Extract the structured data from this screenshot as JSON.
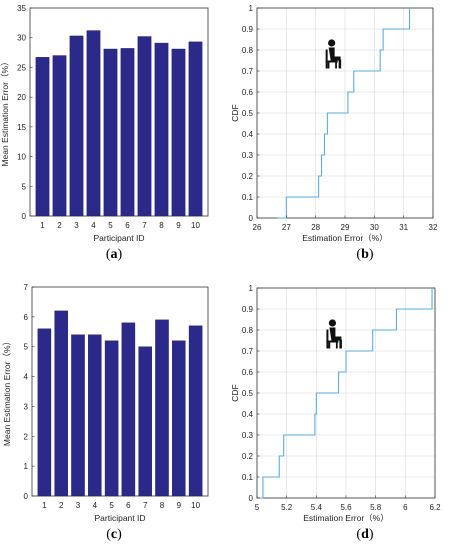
{
  "chart_data": [
    {
      "id": "a",
      "type": "bar",
      "caption": "a",
      "categories": [
        "1",
        "2",
        "3",
        "4",
        "5",
        "6",
        "7",
        "8",
        "9",
        "10"
      ],
      "values": [
        26.7,
        27.0,
        30.3,
        31.2,
        28.1,
        28.2,
        30.2,
        29.1,
        28.1,
        29.3
      ],
      "xlabel": "Participant ID",
      "ylabel": "Mean Estimation Error（%）",
      "ylim": [
        0,
        35
      ],
      "yticks": [
        "0",
        "5",
        "10",
        "15",
        "20",
        "25",
        "30",
        "35"
      ],
      "grid": false,
      "bar_color": "#2b2a8a"
    },
    {
      "id": "b",
      "type": "line",
      "caption": "b",
      "icon": "seated-person-icon",
      "x": [
        26.7,
        27.0,
        28.1,
        28.2,
        28.3,
        28.4,
        29.1,
        29.3,
        30.2,
        30.3,
        31.2
      ],
      "y": [
        0.0,
        0.1,
        0.2,
        0.3,
        0.4,
        0.5,
        0.6,
        0.7,
        0.8,
        0.9,
        1.0
      ],
      "step": true,
      "xlabel": "Estimation Error（%）",
      "ylabel": "CDF",
      "xlim": [
        26,
        32
      ],
      "ylim": [
        0,
        1
      ],
      "xticks": [
        "26",
        "27",
        "28",
        "29",
        "30",
        "31",
        "32"
      ],
      "yticks": [
        "0",
        "0.1",
        "0.2",
        "0.3",
        "0.4",
        "0.5",
        "0.6",
        "0.7",
        "0.8",
        "0.9",
        "1"
      ],
      "grid": true,
      "line_color": "#5aaee0"
    },
    {
      "id": "c",
      "type": "bar",
      "caption": "c",
      "categories": [
        "1",
        "2",
        "3",
        "4",
        "5",
        "6",
        "7",
        "8",
        "9",
        "10"
      ],
      "values": [
        5.6,
        6.2,
        5.4,
        5.4,
        5.2,
        5.8,
        5.0,
        5.9,
        5.2,
        5.7
      ],
      "xlabel": "Participant ID",
      "ylabel": "Mean Estimation Error（%）",
      "ylim": [
        0,
        7
      ],
      "yticks": [
        "0",
        "1",
        "2",
        "3",
        "4",
        "5",
        "6",
        "7"
      ],
      "grid": false,
      "bar_color": "#2b2a8a"
    },
    {
      "id": "d",
      "type": "line",
      "caption": "d",
      "icon": "seated-person-icon",
      "x": [
        5.02,
        5.04,
        5.15,
        5.18,
        5.39,
        5.4,
        5.55,
        5.6,
        5.78,
        5.94,
        6.18
      ],
      "y": [
        0.0,
        0.1,
        0.2,
        0.3,
        0.4,
        0.5,
        0.6,
        0.7,
        0.8,
        0.9,
        1.0
      ],
      "step": true,
      "xlabel": "Estimation Error（%）",
      "ylabel": "CDF",
      "xlim": [
        5,
        6.2
      ],
      "ylim": [
        0,
        1
      ],
      "xticks": [
        "5",
        "5.2",
        "5.4",
        "5.6",
        "5.8",
        "6",
        "6.2"
      ],
      "yticks": [
        "0",
        "0.1",
        "0.2",
        "0.3",
        "0.4",
        "0.5",
        "0.6",
        "0.7",
        "0.8",
        "0.9",
        "1"
      ],
      "grid": true,
      "line_color": "#5aaee0"
    }
  ]
}
